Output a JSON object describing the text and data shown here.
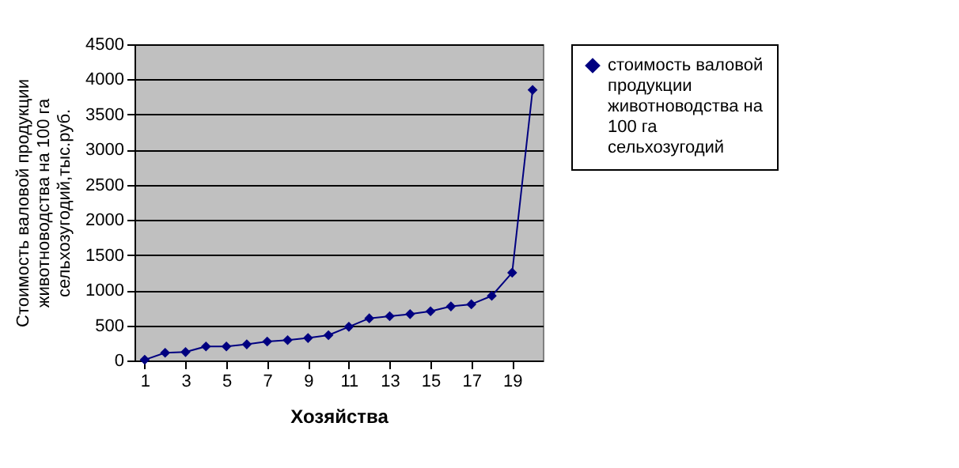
{
  "chart_data": {
    "type": "line",
    "xlabel": "Хозяйства",
    "ylabel": "Стоимость валовой продукции животноводства на 100 га сельхозугодий,тыс.руб.",
    "x": [
      1,
      2,
      3,
      4,
      5,
      6,
      7,
      8,
      9,
      10,
      11,
      12,
      13,
      14,
      15,
      16,
      17,
      18,
      19,
      20
    ],
    "xlim": [
      0.5,
      20.5
    ],
    "xticks": [
      1,
      3,
      5,
      7,
      9,
      11,
      13,
      15,
      17,
      19
    ],
    "series": [
      {
        "name": "стоимость валовой продукции животноводства на 100 га сельхозугодий",
        "color": "#000080",
        "values": [
          10,
          110,
          120,
          200,
          200,
          230,
          270,
          290,
          320,
          360,
          480,
          600,
          630,
          660,
          700,
          770,
          800,
          920,
          1250,
          3850
        ]
      }
    ],
    "ylim": [
      0,
      4500
    ],
    "yticks": [
      0,
      500,
      1000,
      1500,
      2000,
      2500,
      3000,
      3500,
      4000,
      4500
    ],
    "grid": "y",
    "legend": "right",
    "marker": "diamond",
    "line_style": "solid"
  }
}
